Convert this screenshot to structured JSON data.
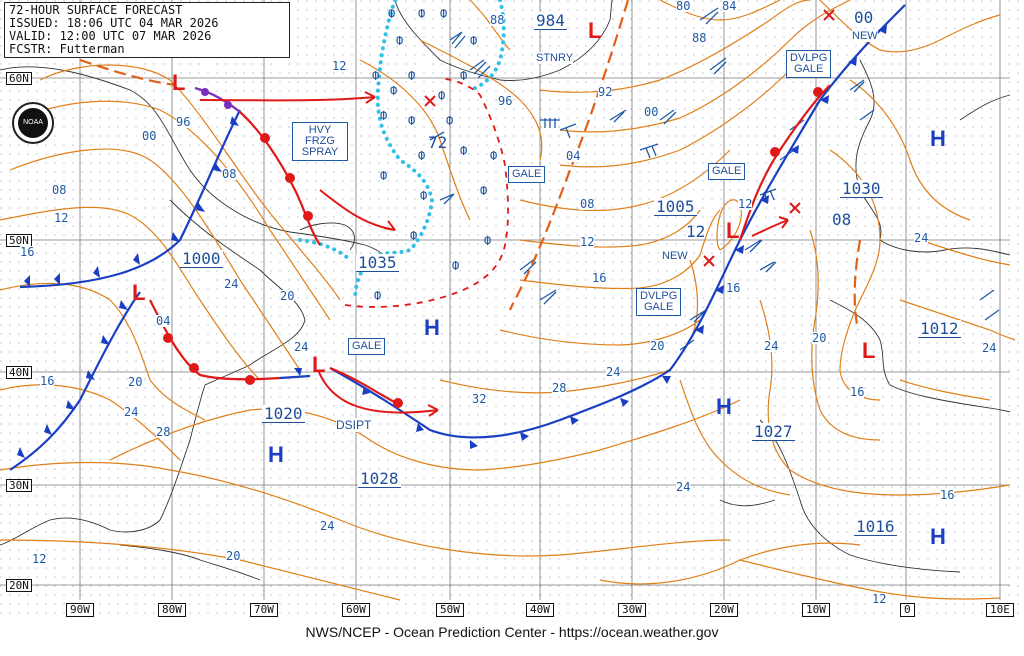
{
  "header": {
    "line1": "72-HOUR SURFACE FORECAST",
    "line2": "ISSUED: 18:06 UTC 04 MAR 2026",
    "line3": "VALID: 12:00 UTC 07 MAR 2026",
    "line4": "FCSTR: Futterman"
  },
  "footer": "NWS/NCEP - Ocean Prediction Center - https://ocean.weather.gov",
  "logo_text": "NOAA",
  "colors": {
    "isobar": "#e0801a",
    "front_cold": "#1a3fc2",
    "front_warm": "#e01818",
    "ice": "#33c0e8",
    "label": "#1f4f9a"
  },
  "latitudes": [
    "60N",
    "50N",
    "40N",
    "30N",
    "20N"
  ],
  "longitudes": [
    "90W",
    "80W",
    "70W",
    "60W",
    "50W",
    "40W",
    "30W",
    "20W",
    "10W",
    "0",
    "10E"
  ],
  "pressure_centers": [
    {
      "type": "L",
      "value": "984"
    },
    {
      "type": "L",
      "value": "1000"
    },
    {
      "type": "L",
      "value": "1005"
    },
    {
      "type": "L",
      "value": "1012"
    },
    {
      "type": "H",
      "value": "1035"
    },
    {
      "type": "H",
      "value": "1020"
    },
    {
      "type": "H",
      "value": "1028"
    },
    {
      "type": "H",
      "value": "1027"
    },
    {
      "type": "H",
      "value": "1030"
    },
    {
      "type": "H",
      "value": "1016"
    }
  ],
  "labels": {
    "hvy_frzg_spray": [
      "HVY",
      "FRZG",
      "SPRAY"
    ],
    "stnry": "STNRY",
    "gale1": "GALE",
    "gale2": "GALE",
    "gale3": "GALE",
    "dvlpg_gale1": [
      "DVLPG",
      "GALE"
    ],
    "dvlpg_gale2": [
      "DVLPG",
      "GALE"
    ],
    "new1": "NEW",
    "new2": "NEW",
    "dsipt": "DSIPT",
    "x00": "00",
    "x08": "08",
    "x12": "12",
    "x72": "72"
  },
  "isobar_labels": [
    "88",
    "80",
    "84",
    "88",
    "92",
    "96",
    "00",
    "04",
    "08",
    "12",
    "16",
    "20",
    "24",
    "28",
    "32",
    "96",
    "00",
    "04",
    "08",
    "12",
    "16",
    "20",
    "24",
    "12",
    "08",
    "12",
    "16",
    "24",
    "16",
    "20",
    "24",
    "28",
    "24",
    "24",
    "20",
    "16",
    "12",
    "16",
    "24",
    "24",
    "20",
    "12",
    "24"
  ]
}
